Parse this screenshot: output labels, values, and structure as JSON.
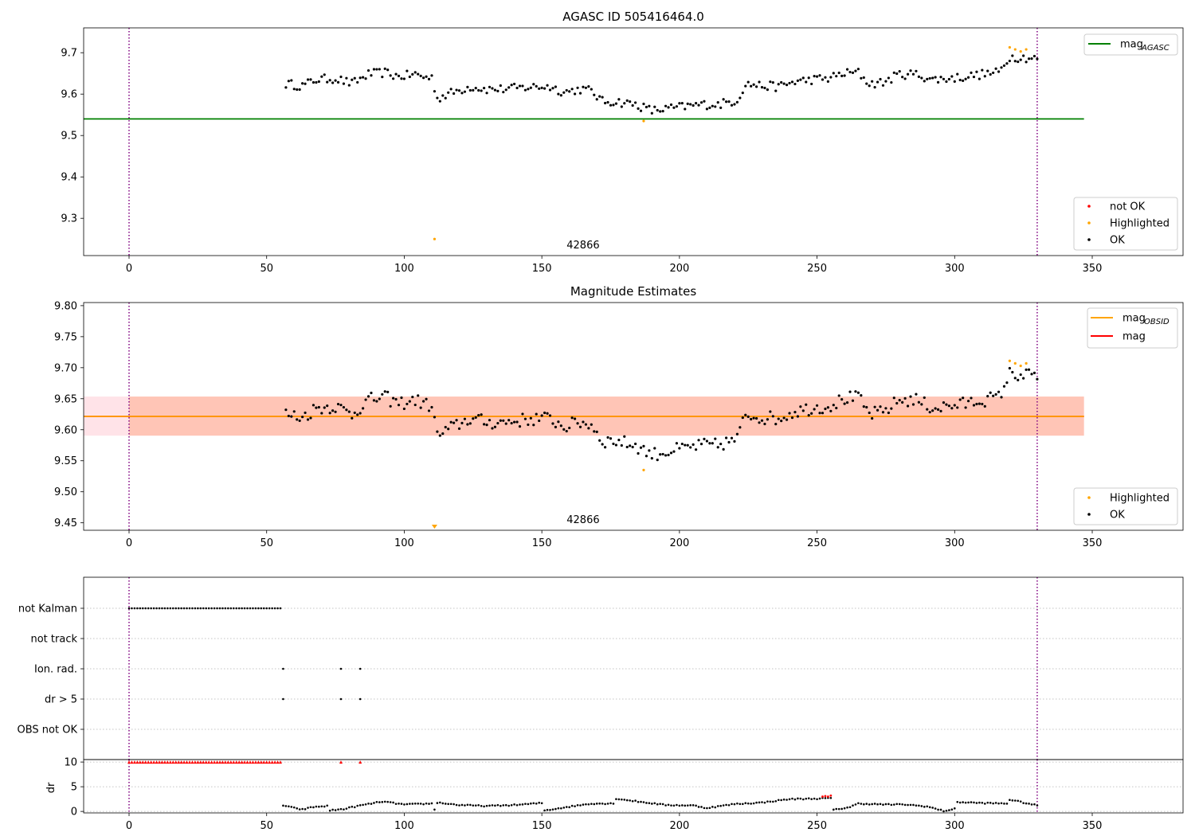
{
  "colors": {
    "ok": "#000000",
    "highlighted": "#ffa500",
    "not_ok": "#ff0000",
    "mag_agasc": "#008000",
    "mag_obsid": "#ffa500",
    "mag": "#ff0000",
    "band_outer": "#ffc0cb",
    "band_inner": "#ffa07a",
    "vline": "#800080",
    "grid": "#b0b0b0"
  },
  "chart_data": [
    {
      "type": "scatter",
      "title": "AGASC ID 505416464.0",
      "xlabel": "",
      "ylabel": "",
      "xlim": [
        -16.5,
        383
      ],
      "ylim": [
        9.21,
        9.76
      ],
      "xticks": [
        0,
        50,
        100,
        150,
        200,
        250,
        300,
        350
      ],
      "yticks": [
        9.3,
        9.4,
        9.5,
        9.6,
        9.7
      ],
      "ytick_labels": [
        "9.3",
        "9.4",
        "9.5",
        "9.6",
        "9.7"
      ],
      "vlines": [
        0,
        330
      ],
      "hlines": [
        {
          "name": "mag_{AGASC}",
          "label_base": "mag",
          "label_sub": "AGASC",
          "y": 9.54,
          "x": [
            -16.5,
            347
          ],
          "color": "#008000"
        }
      ],
      "obsid_labels": [
        {
          "text": "42866",
          "x": 165
        }
      ],
      "legend_lines": [
        {
          "base": "mag",
          "sub": "AGASC",
          "color": "#008000"
        }
      ],
      "legend_points": [
        {
          "label": "not OK",
          "color": "#ff0000"
        },
        {
          "label": "Highlighted",
          "color": "#ffa500"
        },
        {
          "label": "OK",
          "color": "#000000"
        }
      ],
      "highlighted_points": [
        [
          111,
          9.25
        ],
        [
          187,
          9.535
        ],
        [
          320,
          9.713
        ],
        [
          322,
          9.708
        ],
        [
          324,
          9.703
        ],
        [
          326,
          9.708
        ]
      ],
      "ok_points": [],
      "ok_profile": [
        [
          57,
          9.625
        ],
        [
          63,
          9.62
        ],
        [
          68,
          9.635
        ],
        [
          75,
          9.638
        ],
        [
          81,
          9.625
        ],
        [
          87,
          9.648
        ],
        [
          93,
          9.652
        ],
        [
          98,
          9.642
        ],
        [
          104,
          9.648
        ],
        [
          108,
          9.64
        ],
        [
          110,
          9.64
        ],
        [
          112,
          9.59
        ],
        [
          118,
          9.605
        ],
        [
          124,
          9.618
        ],
        [
          130,
          9.612
        ],
        [
          136,
          9.612
        ],
        [
          142,
          9.615
        ],
        [
          148,
          9.618
        ],
        [
          153,
          9.618
        ],
        [
          158,
          9.605
        ],
        [
          164,
          9.612
        ],
        [
          168,
          9.608
        ],
        [
          172,
          9.582
        ],
        [
          177,
          9.582
        ],
        [
          184,
          9.575
        ],
        [
          190,
          9.56
        ],
        [
          196,
          9.565
        ],
        [
          202,
          9.57
        ],
        [
          208,
          9.575
        ],
        [
          214,
          9.575
        ],
        [
          221,
          9.585
        ],
        [
          224,
          9.625
        ],
        [
          230,
          9.62
        ],
        [
          236,
          9.618
        ],
        [
          242,
          9.63
        ],
        [
          248,
          9.635
        ],
        [
          254,
          9.638
        ],
        [
          260,
          9.65
        ],
        [
          265,
          9.652
        ],
        [
          269,
          9.625
        ],
        [
          274,
          9.628
        ],
        [
          280,
          9.648
        ],
        [
          286,
          9.648
        ],
        [
          292,
          9.635
        ],
        [
          298,
          9.638
        ],
        [
          304,
          9.642
        ],
        [
          310,
          9.648
        ],
        [
          316,
          9.652
        ],
        [
          320,
          9.69
        ],
        [
          326,
          9.688
        ],
        [
          330,
          9.686
        ]
      ]
    },
    {
      "type": "scatter",
      "title": "Magnitude Estimates",
      "xlabel": "",
      "ylabel": "",
      "xlim": [
        -16.5,
        383
      ],
      "ylim": [
        9.438,
        9.805
      ],
      "xticks": [
        0,
        50,
        100,
        150,
        200,
        250,
        300,
        350
      ],
      "yticks": [
        9.45,
        9.5,
        9.55,
        9.6,
        9.65,
        9.7,
        9.75,
        9.8
      ],
      "ytick_labels": [
        "9.45",
        "9.50",
        "9.55",
        "9.60",
        "9.65",
        "9.70",
        "9.75",
        "9.80"
      ],
      "vlines": [
        0,
        330
      ],
      "hlines": [
        {
          "name": "mag",
          "label_base": "mag",
          "label_sub": "",
          "y": 9.6215,
          "x": [
            -16.5,
            347
          ],
          "color": "#ff0000"
        },
        {
          "name": "mag_{OBSID}",
          "label_base": "mag",
          "label_sub": "OBSID",
          "y": 9.6215,
          "x": [
            -16.5,
            347
          ],
          "color": "#ffa500"
        }
      ],
      "bands": [
        {
          "y0": 9.5905,
          "y1": 9.6535,
          "x0": -16.5,
          "x1": 347,
          "color": "#ffc0cb"
        },
        {
          "y0": 9.5905,
          "y1": 9.6535,
          "x0": 0,
          "x1": 347,
          "color": "#ffa07a"
        }
      ],
      "obsid_labels": [
        {
          "text": "42866",
          "x": 165
        }
      ],
      "legend_lines": [
        {
          "base": "mag",
          "sub": "OBSID",
          "color": "#ffa500"
        },
        {
          "base": "mag",
          "sub": "",
          "color": "#ff0000"
        }
      ],
      "legend_points": [
        {
          "label": "Highlighted",
          "color": "#ffa500"
        },
        {
          "label": "OK",
          "color": "#000000"
        }
      ],
      "highlighted_points": [
        [
          187,
          9.535
        ],
        [
          320,
          9.711
        ],
        [
          322,
          9.707
        ],
        [
          324,
          9.703
        ],
        [
          326,
          9.707
        ]
      ],
      "offscale_markers": [
        {
          "x": 111,
          "color": "#ffa500"
        }
      ],
      "ok_points": [],
      "ok_profile": [
        [
          57,
          9.625
        ],
        [
          63,
          9.62
        ],
        [
          68,
          9.635
        ],
        [
          75,
          9.638
        ],
        [
          81,
          9.625
        ],
        [
          87,
          9.648
        ],
        [
          93,
          9.652
        ],
        [
          98,
          9.642
        ],
        [
          104,
          9.648
        ],
        [
          108,
          9.64
        ],
        [
          110,
          9.64
        ],
        [
          112,
          9.59
        ],
        [
          118,
          9.605
        ],
        [
          124,
          9.618
        ],
        [
          130,
          9.612
        ],
        [
          136,
          9.612
        ],
        [
          142,
          9.615
        ],
        [
          148,
          9.618
        ],
        [
          153,
          9.618
        ],
        [
          158,
          9.605
        ],
        [
          164,
          9.612
        ],
        [
          168,
          9.608
        ],
        [
          172,
          9.582
        ],
        [
          177,
          9.582
        ],
        [
          184,
          9.575
        ],
        [
          190,
          9.56
        ],
        [
          196,
          9.565
        ],
        [
          202,
          9.57
        ],
        [
          208,
          9.575
        ],
        [
          214,
          9.575
        ],
        [
          221,
          9.585
        ],
        [
          224,
          9.625
        ],
        [
          230,
          9.62
        ],
        [
          236,
          9.618
        ],
        [
          242,
          9.63
        ],
        [
          248,
          9.635
        ],
        [
          254,
          9.638
        ],
        [
          260,
          9.65
        ],
        [
          265,
          9.652
        ],
        [
          269,
          9.625
        ],
        [
          274,
          9.628
        ],
        [
          280,
          9.648
        ],
        [
          286,
          9.648
        ],
        [
          292,
          9.635
        ],
        [
          298,
          9.638
        ],
        [
          304,
          9.642
        ],
        [
          310,
          9.648
        ],
        [
          316,
          9.652
        ],
        [
          320,
          9.69
        ],
        [
          326,
          9.688
        ],
        [
          330,
          9.686
        ]
      ]
    },
    {
      "type": "scatter",
      "title": "",
      "xlabel": "",
      "ylabel": "",
      "xlim": [
        -16.5,
        383
      ],
      "categories": [
        "not Kalman",
        "not track",
        "Ion. rad.",
        "dr > 5",
        "OBS not OK"
      ],
      "vlines": [
        0,
        330
      ],
      "flag_points": {
        "not Kalman": {
          "range": [
            0,
            55
          ],
          "step": 1
        },
        "not track": {
          "points": []
        },
        "Ion. rad.": {
          "points": [
            56,
            77,
            84
          ]
        },
        "dr > 5": {
          "points": [
            56,
            77,
            84
          ]
        },
        "OBS not OK": {
          "points": []
        }
      }
    },
    {
      "type": "scatter",
      "title": "",
      "xlabel": "",
      "ylabel": "dr",
      "xlim": [
        -16.5,
        383
      ],
      "ylim": [
        -0.3,
        10.5
      ],
      "xticks": [
        0,
        50,
        100,
        150,
        200,
        250,
        300,
        350
      ],
      "yticks": [
        0,
        5,
        10
      ],
      "ytick_labels": [
        "0",
        "5",
        "10"
      ],
      "vlines": [
        0,
        330
      ],
      "clipped_red": {
        "range": [
          0,
          55
        ],
        "step": 1,
        "extra": [
          77,
          84
        ],
        "y": 10,
        "color": "#ff0000"
      },
      "red_points": [
        [
          252,
          3.0
        ],
        [
          253,
          3.1
        ],
        [
          254,
          3.0
        ],
        [
          255,
          3.2
        ]
      ],
      "ok_profile": [
        [
          56,
          1.2
        ],
        [
          60,
          0.7
        ],
        [
          63,
          0.4
        ],
        [
          67,
          0.9
        ],
        [
          72,
          1.1
        ],
        [
          73,
          0.2
        ],
        [
          78,
          0.5
        ],
        [
          84,
          1.2
        ],
        [
          92,
          2.0
        ],
        [
          100,
          1.4
        ],
        [
          110,
          1.6
        ],
        [
          111,
          0.4
        ],
        [
          112,
          1.8
        ],
        [
          120,
          1.3
        ],
        [
          130,
          1.1
        ],
        [
          140,
          1.3
        ],
        [
          150,
          1.7
        ],
        [
          151,
          0.2
        ],
        [
          158,
          0.8
        ],
        [
          168,
          1.6
        ],
        [
          176,
          1.6
        ],
        [
          177,
          2.6
        ],
        [
          185,
          2.0
        ],
        [
          195,
          1.3
        ],
        [
          205,
          1.2
        ],
        [
          210,
          0.7
        ],
        [
          220,
          1.5
        ],
        [
          230,
          1.8
        ],
        [
          240,
          2.5
        ],
        [
          250,
          2.6
        ],
        [
          255,
          2.7
        ],
        [
          256,
          0.3
        ],
        [
          262,
          0.9
        ],
        [
          265,
          1.6
        ],
        [
          275,
          1.4
        ],
        [
          282,
          1.4
        ],
        [
          290,
          1.0
        ],
        [
          296,
          0.1
        ],
        [
          300,
          0.5
        ],
        [
          301,
          1.9
        ],
        [
          310,
          1.7
        ],
        [
          319,
          1.6
        ],
        [
          320,
          2.4
        ],
        [
          330,
          1.2
        ]
      ]
    }
  ]
}
